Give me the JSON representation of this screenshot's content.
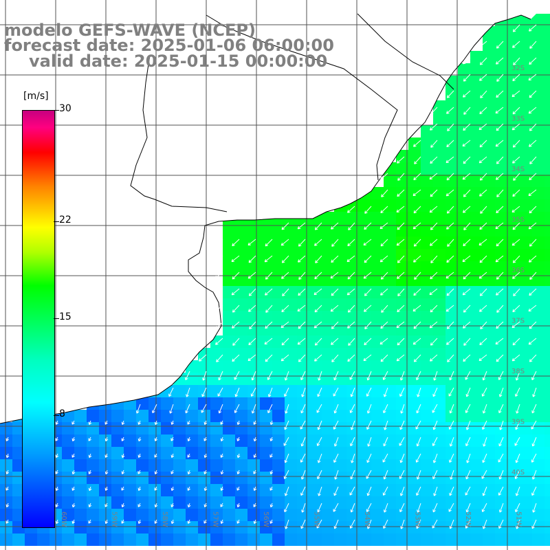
{
  "title": {
    "line1": "modelo GEFS-WAVE (NCEP)",
    "line2": "forecast date: 2025-01-06 06:00:00",
    "line3": "valid date: 2025-01-15 00:00:00"
  },
  "colorbar": {
    "units": "[m/s]",
    "ticks": [
      {
        "label": "30",
        "value": 30
      },
      {
        "label": "22",
        "value": 22
      },
      {
        "label": "15",
        "value": 15
      },
      {
        "label": "8",
        "value": 8
      }
    ],
    "min": 0,
    "max": 30
  },
  "lat_labels": [
    "32S",
    "33S",
    "34S",
    "35S",
    "36S",
    "37S",
    "38S",
    "39S",
    "40S"
  ],
  "lon_labels": [
    "60W",
    "59W",
    "58W",
    "57W",
    "56W",
    "55W",
    "54W",
    "53W",
    "52W",
    "51W"
  ],
  "colors": {
    "title": "#808080",
    "grid": "#505050",
    "coast": "#000000",
    "arrows": "#ffffff"
  },
  "wind_field": {
    "description_source": "wind speed shading with white direction arrows",
    "dominant_direction": "from northeast"
  }
}
